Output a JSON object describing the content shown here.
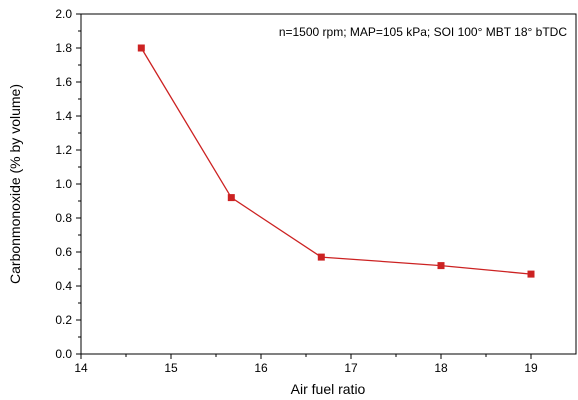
{
  "chart_data": {
    "type": "line",
    "title": "",
    "annotation": "n=1500 rpm; MAP=105 kPa; SOI 100° MBT 18° bTDC",
    "xlabel": "Air fuel ratio",
    "ylabel": "Carbonmonoxide (% by volume)",
    "xlim": [
      14,
      19.5
    ],
    "ylim": [
      0,
      2.0
    ],
    "xticks": [
      "14",
      "15",
      "16",
      "17",
      "18",
      "19"
    ],
    "yticks": [
      "0.0",
      "0.2",
      "0.4",
      "0.6",
      "0.8",
      "1.0",
      "1.2",
      "1.4",
      "1.6",
      "1.8",
      "2.0"
    ],
    "grid": false,
    "legend": "none",
    "series": [
      {
        "color": "#cc2222",
        "marker": "square",
        "x": [
          14.67,
          15.67,
          16.67,
          18.0,
          19.0
        ],
        "y": [
          1.8,
          0.92,
          0.57,
          0.52,
          0.47
        ]
      }
    ]
  }
}
